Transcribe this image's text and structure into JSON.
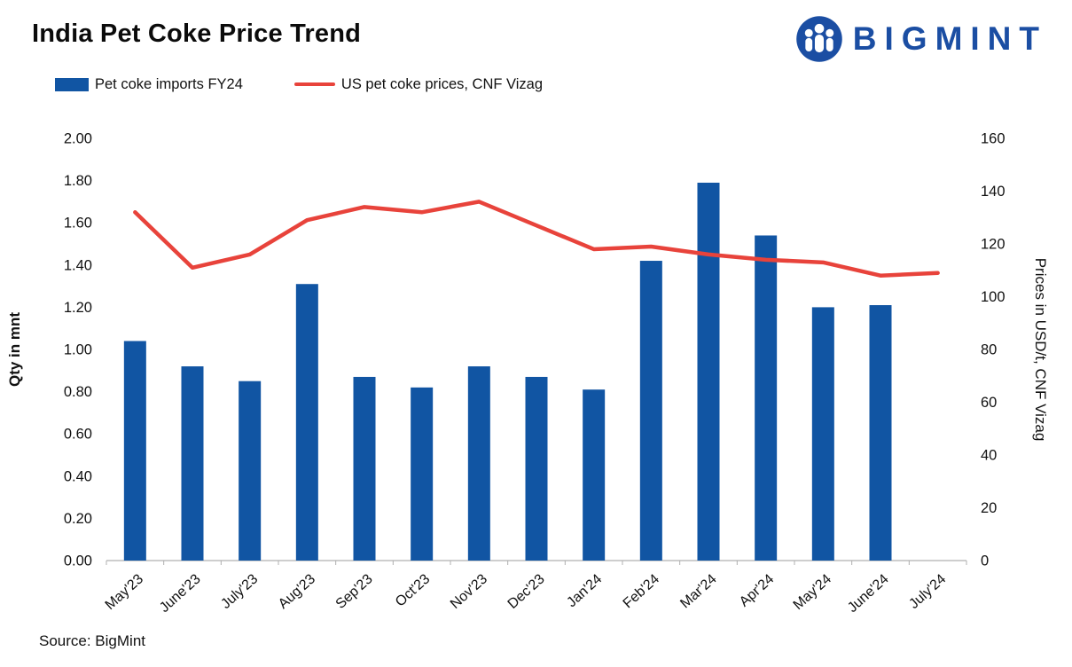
{
  "header": {
    "title": "India Pet Coke Price Trend",
    "brand": "BIGMINT"
  },
  "legend": [
    {
      "label": "Pet coke imports FY24",
      "color": "#1155a3",
      "type": "bar"
    },
    {
      "label": "US pet coke prices, CNF Vizag",
      "color": "#e8433b",
      "type": "line"
    }
  ],
  "source": "Source: BigMint",
  "chart_data": {
    "type": "bar+line",
    "title": "India Pet Coke Price Trend",
    "categories": [
      "May'23",
      "June'23",
      "July'23",
      "Aug'23",
      "Sep'23",
      "Oct'23",
      "Nov'23",
      "Dec'23",
      "Jan'24",
      "Feb'24",
      "Mar'24",
      "Apr'24",
      "May'24",
      "June'24",
      "July'24"
    ],
    "series": [
      {
        "name": "Pet coke imports FY24",
        "type": "bar",
        "axis": "left",
        "color": "#1155a3",
        "values": [
          1.04,
          0.92,
          0.85,
          1.31,
          0.87,
          0.82,
          0.92,
          0.87,
          0.81,
          1.42,
          1.79,
          1.54,
          1.2,
          1.21,
          null
        ]
      },
      {
        "name": "US pet coke prices, CNF Vizag",
        "type": "line",
        "axis": "right",
        "color": "#e8433b",
        "values": [
          132,
          111,
          116,
          129,
          134,
          132,
          136,
          127,
          118,
          119,
          116,
          114,
          113,
          108,
          109
        ]
      }
    ],
    "left_axis": {
      "label": "Qty in mnt",
      "min": 0,
      "max": 2,
      "step": 0.2,
      "tick_decimals": 2
    },
    "right_axis": {
      "label": "Prices in USD/t, CNF Vizag",
      "min": 0,
      "max": 160,
      "step": 20,
      "tick_decimals": 0
    },
    "grid": false,
    "legend_position": "top-left"
  }
}
